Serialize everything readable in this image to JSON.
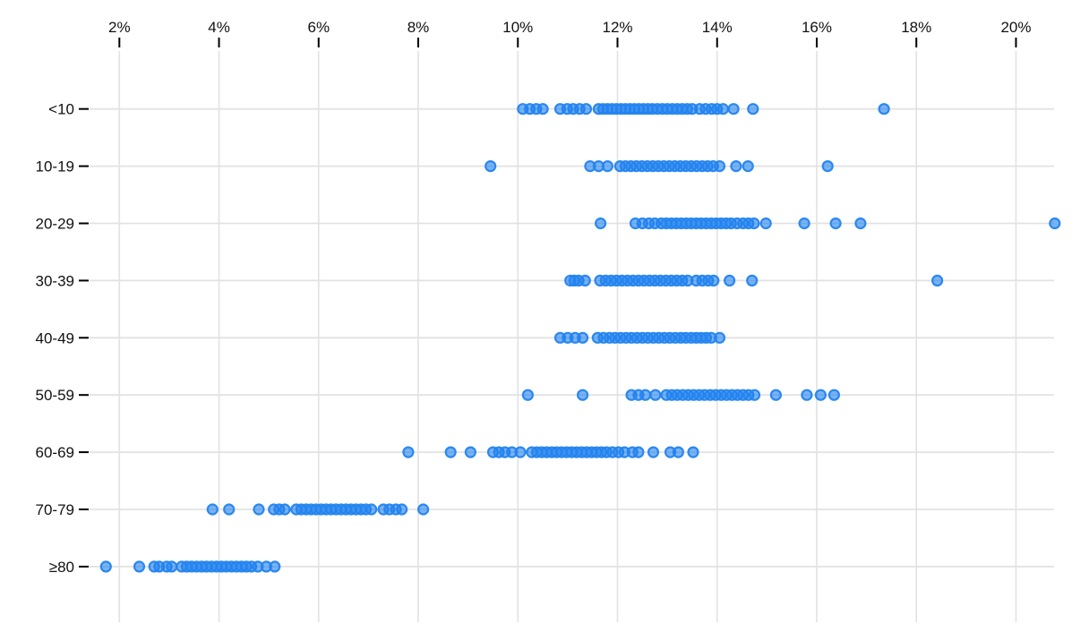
{
  "chart_data": {
    "type": "scatter",
    "variant": "horizontal-strip-plot",
    "title": "",
    "xlabel": "",
    "ylabel": "",
    "x_ticks": [
      {
        "value": 2,
        "label": "2%"
      },
      {
        "value": 4,
        "label": "4%"
      },
      {
        "value": 6,
        "label": "6%"
      },
      {
        "value": 8,
        "label": "8%"
      },
      {
        "value": 10,
        "label": "10%"
      },
      {
        "value": 12,
        "label": "12%"
      },
      {
        "value": 14,
        "label": "14%"
      },
      {
        "value": 16,
        "label": "16%"
      },
      {
        "value": 18,
        "label": "18%"
      },
      {
        "value": 20,
        "label": "20%"
      }
    ],
    "xlim": [
      1.4,
      20.8
    ],
    "grid": true,
    "legend": "none",
    "categories": [
      "<10",
      "10-19",
      "20-29",
      "30-39",
      "40-49",
      "50-59",
      "60-69",
      "70-79",
      "≥80"
    ],
    "series": [
      {
        "category": "<10",
        "values": [
          10.1,
          10.24,
          10.37,
          10.5,
          10.85,
          10.99,
          11.11,
          11.24,
          11.37,
          11.62,
          11.71,
          11.8,
          11.89,
          11.98,
          12.07,
          12.16,
          12.25,
          12.34,
          12.43,
          12.52,
          12.61,
          12.7,
          12.8,
          12.9,
          13.0,
          13.1,
          13.2,
          13.3,
          13.4,
          13.5,
          13.65,
          13.77,
          13.89,
          14.0,
          14.12,
          14.33,
          14.72,
          17.35
        ]
      },
      {
        "category": "10-19",
        "values": [
          9.45,
          11.45,
          11.62,
          11.8,
          12.05,
          12.16,
          12.27,
          12.38,
          12.49,
          12.6,
          12.71,
          12.82,
          12.93,
          13.04,
          13.15,
          13.26,
          13.37,
          13.48,
          13.59,
          13.7,
          13.81,
          13.92,
          14.05,
          14.38,
          14.62,
          16.22
        ]
      },
      {
        "category": "20-29",
        "values": [
          11.66,
          12.36,
          12.5,
          12.63,
          12.75,
          12.88,
          12.98,
          13.08,
          13.18,
          13.28,
          13.38,
          13.48,
          13.58,
          13.68,
          13.78,
          13.88,
          13.98,
          14.08,
          14.18,
          14.28,
          14.4,
          14.52,
          14.63,
          14.74,
          14.98,
          15.75,
          16.38,
          16.88,
          20.78
        ]
      },
      {
        "category": "30-39",
        "values": [
          11.05,
          11.13,
          11.22,
          11.35,
          11.65,
          11.76,
          11.87,
          11.98,
          12.09,
          12.2,
          12.31,
          12.42,
          12.53,
          12.64,
          12.75,
          12.86,
          12.97,
          13.08,
          13.19,
          13.3,
          13.41,
          13.58,
          13.7,
          13.82,
          13.93,
          14.25,
          14.7,
          18.42
        ]
      },
      {
        "category": "40-49",
        "values": [
          10.85,
          11.0,
          11.15,
          11.3,
          11.6,
          11.72,
          11.84,
          11.95,
          12.06,
          12.17,
          12.28,
          12.39,
          12.5,
          12.61,
          12.72,
          12.83,
          12.94,
          13.05,
          13.16,
          13.27,
          13.37,
          13.48,
          13.58,
          13.68,
          13.78,
          13.88,
          14.05
        ]
      },
      {
        "category": "50-59",
        "values": [
          10.2,
          11.3,
          12.28,
          12.42,
          12.56,
          12.76,
          12.98,
          13.09,
          13.2,
          13.31,
          13.42,
          13.53,
          13.64,
          13.75,
          13.86,
          13.97,
          14.08,
          14.19,
          14.3,
          14.41,
          14.52,
          14.63,
          14.75,
          15.18,
          15.8,
          16.08,
          16.35
        ]
      },
      {
        "category": "60-69",
        "values": [
          7.8,
          8.65,
          9.05,
          9.5,
          9.62,
          9.74,
          9.88,
          10.05,
          10.28,
          10.38,
          10.48,
          10.58,
          10.68,
          10.78,
          10.88,
          10.98,
          11.08,
          11.18,
          11.28,
          11.38,
          11.48,
          11.58,
          11.68,
          11.78,
          11.9,
          12.02,
          12.14,
          12.3,
          12.42,
          12.72,
          13.06,
          13.22,
          13.52
        ]
      },
      {
        "category": "70-79",
        "values": [
          3.87,
          4.2,
          4.8,
          5.1,
          5.21,
          5.32,
          5.55,
          5.65,
          5.75,
          5.85,
          5.95,
          6.05,
          6.15,
          6.25,
          6.35,
          6.45,
          6.55,
          6.65,
          6.75,
          6.85,
          6.95,
          7.06,
          7.3,
          7.42,
          7.55,
          7.67,
          8.1
        ]
      },
      {
        "category": "≥80",
        "values": [
          1.73,
          2.4,
          2.7,
          2.8,
          2.95,
          3.05,
          3.25,
          3.35,
          3.45,
          3.55,
          3.65,
          3.75,
          3.85,
          3.95,
          4.05,
          4.15,
          4.25,
          4.35,
          4.45,
          4.55,
          4.65,
          4.78,
          4.95,
          5.12
        ]
      }
    ],
    "colors": {
      "dot_fill": "#1e80ee",
      "dot_fill_opacity": 0.6,
      "dot_stroke": "#2484ef",
      "dot_stroke_opacity": 0.95,
      "gridline": "#e2e2e2",
      "tick_mark": "#000000",
      "label_text": "#111111",
      "background": "#ffffff"
    }
  }
}
